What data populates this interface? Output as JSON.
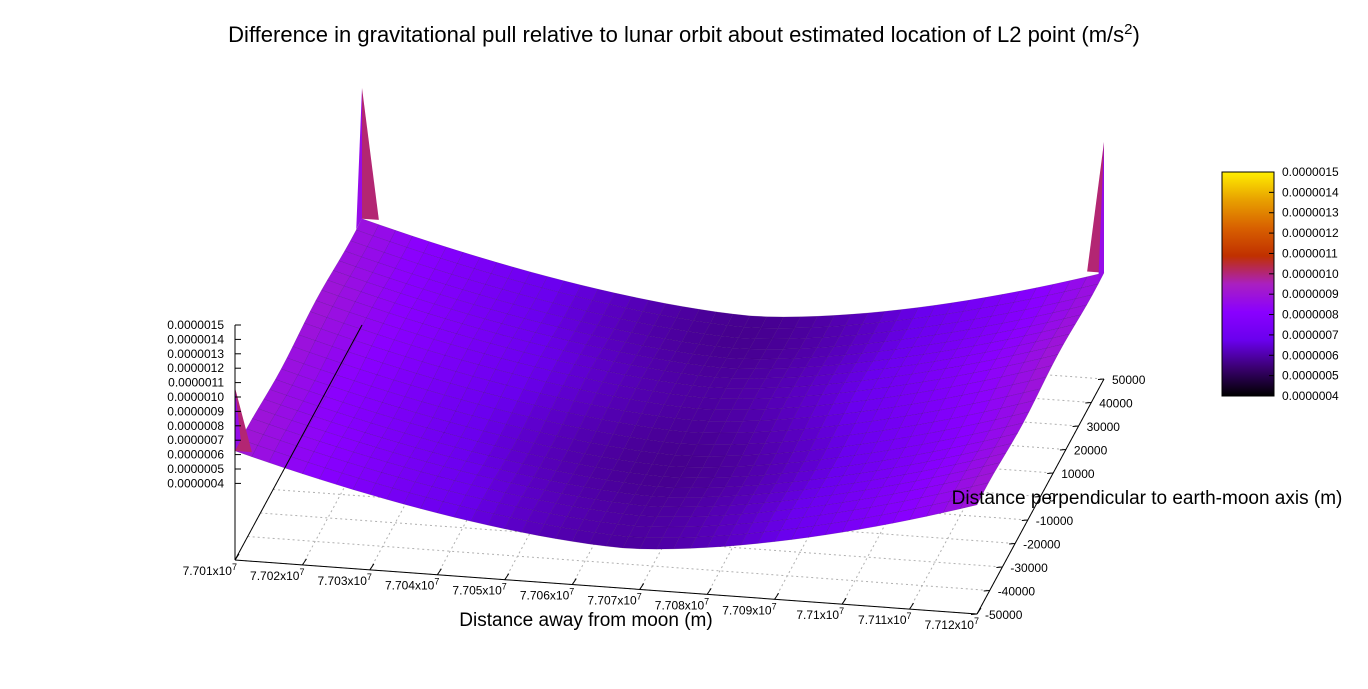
{
  "chart_data": {
    "type": "surface3d",
    "title": "Difference in gravitational pull relative to lunar orbit about estimated location of L2 point (m/s",
    "title_superscript": "2",
    "title_suffix": ")",
    "xlabel": "Distance away from moon (m)",
    "ylabel": "Distance perpendicular to earth-moon axis (m)",
    "x_ticks": [
      "7.701x10",
      "7.702x10",
      "7.703x10",
      "7.704x10",
      "7.705x10",
      "7.706x10",
      "7.707x10",
      "7.708x10",
      "7.709x10",
      "7.71x10",
      "7.711x10",
      "7.712x10"
    ],
    "x_tick_exponent": "7",
    "x_tick_values": [
      77010000,
      77020000,
      77030000,
      77040000,
      77050000,
      77060000,
      77070000,
      77080000,
      77090000,
      77100000,
      77110000,
      77120000
    ],
    "y_ticks": [
      "-50000",
      "-40000",
      "-30000",
      "-20000",
      "-10000",
      "0",
      "10000",
      "20000",
      "30000",
      "40000",
      "50000"
    ],
    "z_ticks": [
      "0.0000004",
      "0.0000005",
      "0.0000006",
      "0.0000007",
      "0.0000008",
      "0.0000009",
      "0.0000010",
      "0.0000011",
      "0.0000012",
      "0.0000013",
      "0.0000014",
      "0.0000015"
    ],
    "colorbar_ticks": [
      "0.0000004",
      "0.0000005",
      "0.0000006",
      "0.0000007",
      "0.0000008",
      "0.0000009",
      "0.0000010",
      "0.0000011",
      "0.0000012",
      "0.0000013",
      "0.0000014",
      "0.0000015"
    ],
    "xlim": [
      77010000,
      77120000
    ],
    "ylim": [
      -50000,
      50000
    ],
    "zlim": [
      4e-07,
      1.5e-06
    ],
    "grid": true,
    "colormap": [
      "#000000",
      "#3a0070",
      "#6a00ee",
      "#8a00ff",
      "#aa20c0",
      "#c03000",
      "#d86000",
      "#e8a000",
      "#ffee00"
    ],
    "surface_shape": {
      "min_along_x_at": 77068000,
      "min_value": 5.8e-07,
      "edge_value_low_x": 9e-07,
      "edge_value_high_x": 9e-07,
      "corner_spikes": [
        {
          "x": 77010000,
          "y": 50000,
          "z": 1.5e-06
        },
        {
          "x": 77120000,
          "y": 50000,
          "z": 1.5e-06
        },
        {
          "x": 77010000,
          "y": -50000,
          "z": 1.2e-06
        }
      ]
    }
  }
}
